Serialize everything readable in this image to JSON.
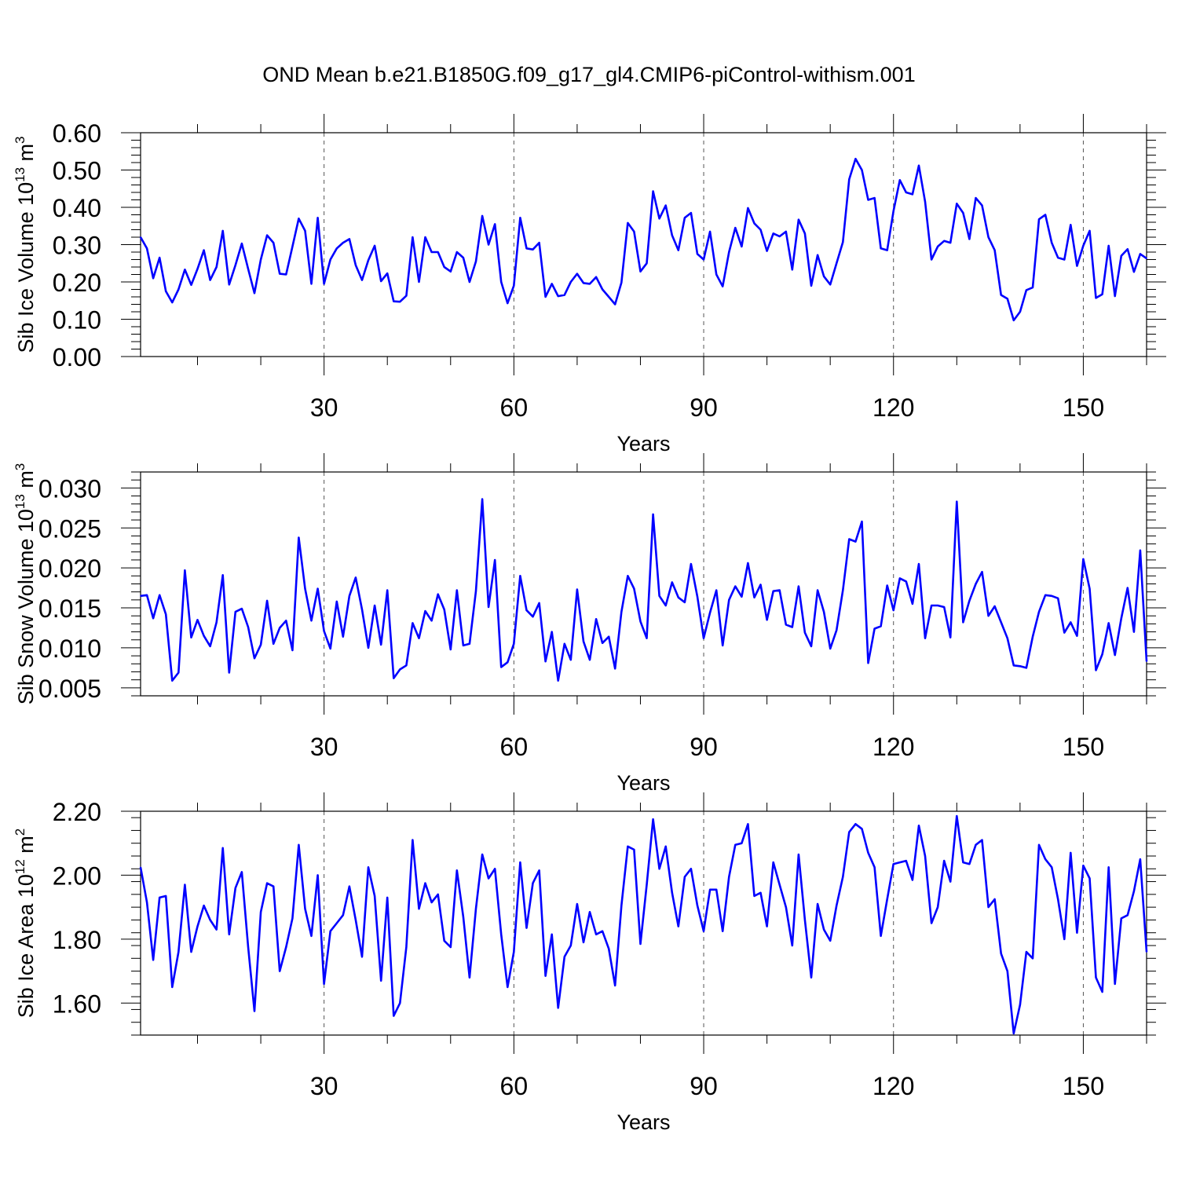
{
  "title": "OND Mean b.e21.B1850G.f09_g17_gl4.CMIP6-piControl-withism.001",
  "colors": {
    "line": "#0000ff",
    "axis": "#000000",
    "grid": "#555555"
  },
  "chart_data": [
    {
      "type": "line",
      "name": "ice-volume",
      "ylabel_main": "Sib Ice Volume 10",
      "ylabel_exp": "13",
      "ylabel_unit": " m",
      "ylabel_unit_exp": "3",
      "xlabel": "Years",
      "xlim": [
        1,
        160
      ],
      "ylim": [
        0,
        0.6
      ],
      "xticks": [
        30,
        60,
        90,
        120,
        150
      ],
      "xticklabels": [
        "30",
        "60",
        "90",
        "120",
        "150"
      ],
      "yticks": [
        0,
        0.1,
        0.2,
        0.3,
        0.4,
        0.5,
        0.6
      ],
      "yticklabels": [
        "0.00",
        "0.10",
        "0.20",
        "0.30",
        "0.40",
        "0.50",
        "0.60"
      ],
      "grid": "vertical dashed at major x ticks",
      "values": [
        0.32,
        0.29,
        0.21,
        0.265,
        0.175,
        0.145,
        0.18,
        0.233,
        0.192,
        0.235,
        0.285,
        0.205,
        0.24,
        0.337,
        0.193,
        0.245,
        0.303,
        0.235,
        0.17,
        0.26,
        0.325,
        0.305,
        0.222,
        0.22,
        0.295,
        0.37,
        0.337,
        0.195,
        0.372,
        0.195,
        0.26,
        0.29,
        0.305,
        0.315,
        0.245,
        0.205,
        0.258,
        0.297,
        0.202,
        0.223,
        0.148,
        0.147,
        0.163,
        0.32,
        0.2,
        0.32,
        0.28,
        0.28,
        0.24,
        0.228,
        0.28,
        0.265,
        0.2,
        0.255,
        0.377,
        0.3,
        0.355,
        0.2,
        0.143,
        0.19,
        0.372,
        0.29,
        0.287,
        0.305,
        0.16,
        0.195,
        0.162,
        0.165,
        0.2,
        0.222,
        0.197,
        0.195,
        0.213,
        0.18,
        0.16,
        0.14,
        0.198,
        0.358,
        0.335,
        0.228,
        0.25,
        0.443,
        0.37,
        0.405,
        0.325,
        0.285,
        0.372,
        0.385,
        0.275,
        0.26,
        0.335,
        0.22,
        0.188,
        0.28,
        0.345,
        0.295,
        0.398,
        0.357,
        0.34,
        0.283,
        0.33,
        0.322,
        0.335,
        0.233,
        0.367,
        0.33,
        0.19,
        0.272,
        0.215,
        0.193,
        0.25,
        0.307,
        0.475,
        0.53,
        0.5,
        0.42,
        0.425,
        0.29,
        0.285,
        0.39,
        0.473,
        0.44,
        0.435,
        0.512,
        0.415,
        0.26,
        0.295,
        0.31,
        0.305,
        0.41,
        0.385,
        0.315,
        0.425,
        0.405,
        0.32,
        0.285,
        0.165,
        0.155,
        0.097,
        0.12,
        0.178,
        0.185,
        0.368,
        0.38,
        0.305,
        0.265,
        0.26,
        0.353,
        0.243,
        0.297,
        0.337,
        0.157,
        0.167,
        0.297,
        0.162,
        0.27,
        0.288,
        0.227,
        0.275,
        0.263
      ]
    },
    {
      "type": "line",
      "name": "snow-volume",
      "ylabel_main": "Sib Snow Volume 10",
      "ylabel_exp": "13",
      "ylabel_unit": " m",
      "ylabel_unit_exp": "3",
      "xlabel": "Years",
      "xlim": [
        1,
        160
      ],
      "ylim": [
        0.004,
        0.032
      ],
      "xticks": [
        30,
        60,
        90,
        120,
        150
      ],
      "xticklabels": [
        "30",
        "60",
        "90",
        "120",
        "150"
      ],
      "yticks": [
        0.005,
        0.01,
        0.015,
        0.02,
        0.025,
        0.03
      ],
      "yticklabels": [
        "0.005",
        "0.010",
        "0.015",
        "0.020",
        "0.025",
        "0.030"
      ],
      "grid": "vertical dashed at major x ticks",
      "values": [
        0.0165,
        0.0166,
        0.0137,
        0.0166,
        0.0142,
        0.0059,
        0.0069,
        0.0197,
        0.0113,
        0.0135,
        0.0115,
        0.0102,
        0.0132,
        0.0191,
        0.0069,
        0.0145,
        0.0149,
        0.0126,
        0.0087,
        0.0104,
        0.0159,
        0.0105,
        0.0125,
        0.0134,
        0.0097,
        0.0238,
        0.0174,
        0.0134,
        0.0174,
        0.0121,
        0.0099,
        0.0158,
        0.0114,
        0.0165,
        0.0188,
        0.0148,
        0.01,
        0.0153,
        0.0104,
        0.0172,
        0.0062,
        0.0073,
        0.0078,
        0.0131,
        0.0112,
        0.0146,
        0.0134,
        0.0167,
        0.0148,
        0.0098,
        0.0172,
        0.0103,
        0.0105,
        0.0171,
        0.0286,
        0.0151,
        0.021,
        0.0076,
        0.0082,
        0.0105,
        0.019,
        0.0147,
        0.0139,
        0.0156,
        0.0083,
        0.012,
        0.0059,
        0.0105,
        0.0085,
        0.0173,
        0.0108,
        0.0085,
        0.0136,
        0.0106,
        0.0114,
        0.0074,
        0.0145,
        0.019,
        0.0174,
        0.0133,
        0.0112,
        0.0267,
        0.0165,
        0.0153,
        0.0182,
        0.0163,
        0.0157,
        0.0205,
        0.0164,
        0.0112,
        0.0144,
        0.0172,
        0.0103,
        0.016,
        0.0177,
        0.0164,
        0.0206,
        0.0163,
        0.0179,
        0.0135,
        0.0171,
        0.0172,
        0.0129,
        0.0126,
        0.0177,
        0.0119,
        0.0102,
        0.0172,
        0.0145,
        0.0099,
        0.0122,
        0.0172,
        0.0236,
        0.0233,
        0.0258,
        0.0081,
        0.0124,
        0.0127,
        0.0178,
        0.0147,
        0.0187,
        0.0183,
        0.0155,
        0.0205,
        0.0112,
        0.0153,
        0.0153,
        0.0151,
        0.0113,
        0.0283,
        0.0132,
        0.0159,
        0.018,
        0.0195,
        0.014,
        0.0152,
        0.0132,
        0.0112,
        0.0078,
        0.0077,
        0.0075,
        0.0114,
        0.0145,
        0.0166,
        0.0165,
        0.0162,
        0.0119,
        0.0132,
        0.0115,
        0.0211,
        0.0174,
        0.0072,
        0.0092,
        0.0131,
        0.0091,
        0.0137,
        0.0175,
        0.012,
        0.0222,
        0.0083
      ]
    },
    {
      "type": "line",
      "name": "ice-area",
      "ylabel_main": "Sib Ice Area 10",
      "ylabel_exp": "12",
      "ylabel_unit": " m",
      "ylabel_unit_exp": "2",
      "xlabel": "Years",
      "xlim": [
        1,
        160
      ],
      "ylim": [
        1.5,
        2.2
      ],
      "xticks": [
        30,
        60,
        90,
        120,
        150
      ],
      "xticklabels": [
        "30",
        "60",
        "90",
        "120",
        "150"
      ],
      "yticks": [
        1.6,
        1.8,
        2.0,
        2.2
      ],
      "yticklabels": [
        "1.60",
        "1.80",
        "2.00",
        "2.20"
      ],
      "grid": "vertical dashed at major x ticks",
      "values": [
        2.025,
        1.915,
        1.735,
        1.93,
        1.935,
        1.65,
        1.76,
        1.97,
        1.76,
        1.84,
        1.905,
        1.86,
        1.83,
        2.085,
        1.815,
        1.96,
        2.01,
        1.775,
        1.575,
        1.885,
        1.975,
        1.965,
        1.7,
        1.775,
        1.865,
        2.095,
        1.895,
        1.81,
        2.0,
        1.66,
        1.825,
        1.85,
        1.875,
        1.965,
        1.86,
        1.745,
        2.025,
        1.935,
        1.67,
        1.93,
        1.56,
        1.6,
        1.775,
        2.11,
        1.895,
        1.975,
        1.915,
        1.94,
        1.795,
        1.775,
        2.015,
        1.87,
        1.68,
        1.895,
        2.065,
        1.99,
        2.02,
        1.815,
        1.65,
        1.76,
        2.04,
        1.835,
        1.975,
        2.015,
        1.685,
        1.815,
        1.585,
        1.745,
        1.78,
        1.91,
        1.79,
        1.885,
        1.815,
        1.825,
        1.77,
        1.655,
        1.905,
        2.09,
        2.08,
        1.785,
        1.97,
        2.175,
        2.02,
        2.09,
        1.945,
        1.84,
        1.995,
        2.02,
        1.905,
        1.825,
        1.955,
        1.955,
        1.825,
        1.995,
        2.095,
        2.1,
        2.16,
        1.935,
        1.945,
        1.84,
        2.04,
        1.97,
        1.9,
        1.78,
        2.065,
        1.86,
        1.68,
        1.91,
        1.83,
        1.795,
        1.905,
        1.995,
        2.135,
        2.16,
        2.145,
        2.07,
        2.025,
        1.81,
        1.925,
        2.035,
        2.04,
        2.045,
        1.985,
        2.155,
        2.06,
        1.85,
        1.9,
        2.045,
        1.98,
        2.185,
        2.04,
        2.035,
        2.095,
        2.11,
        1.9,
        1.925,
        1.755,
        1.7,
        1.505,
        1.595,
        1.76,
        1.74,
        2.095,
        2.05,
        2.025,
        1.925,
        1.8,
        2.07,
        1.82,
        2.03,
        1.99,
        1.68,
        1.635,
        2.025,
        1.66,
        1.865,
        1.875,
        1.95,
        2.05,
        1.76
      ]
    }
  ]
}
